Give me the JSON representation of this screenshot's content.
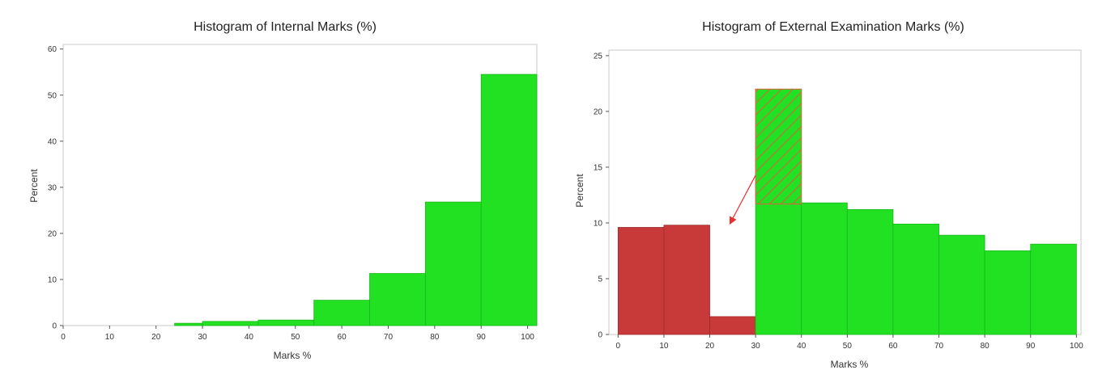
{
  "chart_data": [
    {
      "type": "bar",
      "title": "Histogram of  Internal Marks (%)",
      "xlabel": "Marks %",
      "ylabel": "Percent",
      "bin_edges": [
        0,
        12,
        24,
        30,
        42,
        54,
        66,
        78,
        90,
        102
      ],
      "values": [
        0,
        0,
        0.5,
        0.9,
        1.2,
        5.5,
        11.3,
        26.8,
        54.5
      ],
      "bar_color": "#22e022",
      "xlim": [
        0,
        102
      ],
      "ylim": [
        0,
        61
      ],
      "xticks": [
        0,
        10,
        20,
        30,
        40,
        50,
        60,
        70,
        80,
        90,
        100
      ],
      "yticks": [
        0,
        10,
        20,
        30,
        40,
        50,
        60
      ],
      "grid": false,
      "legend": "none"
    },
    {
      "type": "bar",
      "title": "Histogram of  External Examination Marks (%)",
      "xlabel": "Marks %",
      "ylabel": "Percent",
      "bin_edges": [
        0,
        10,
        20,
        30,
        40,
        50,
        60,
        70,
        80,
        90,
        100
      ],
      "values": [
        9.6,
        9.8,
        1.6,
        22,
        11.8,
        11.2,
        9.9,
        8.9,
        7.5,
        8.1
      ],
      "bar_colors": [
        "#c83a3a",
        "#c83a3a",
        "#c83a3a",
        "#22e022",
        "#22e022",
        "#22e022",
        "#22e022",
        "#22e022",
        "#22e022",
        "#22e022"
      ],
      "hatched_overlay": {
        "bin": 3,
        "from": 11.7,
        "to": 22,
        "color": "#e06040"
      },
      "annotation_arrow_color": "#e83030",
      "xlim": [
        -2,
        101
      ],
      "ylim": [
        0,
        25.5
      ],
      "xticks": [
        0,
        10,
        20,
        30,
        40,
        50,
        60,
        70,
        80,
        90,
        100
      ],
      "yticks": [
        0,
        5,
        10,
        15,
        20,
        25
      ],
      "grid": false,
      "legend": "none"
    }
  ]
}
